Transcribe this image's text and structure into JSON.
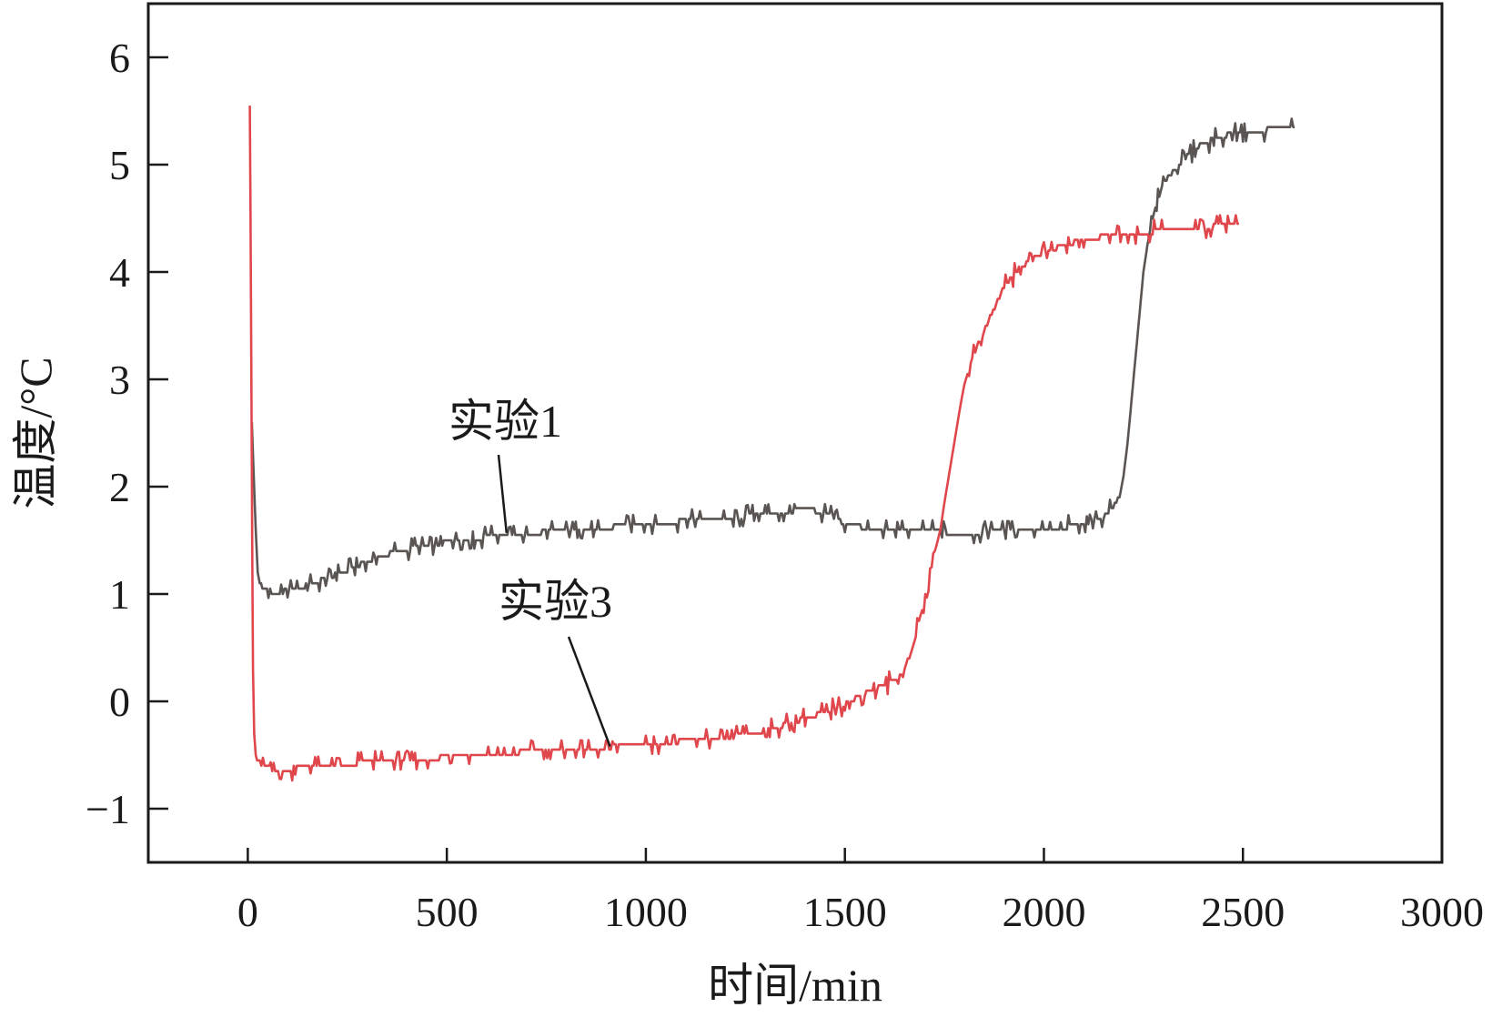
{
  "chart_data": {
    "type": "line",
    "xlabel": "时间/min",
    "ylabel": "温度/°C",
    "xlim": [
      -250,
      3000
    ],
    "ylim": [
      -1.5,
      6.5
    ],
    "xticks": [
      0,
      500,
      1000,
      1500,
      2000,
      2500,
      3000
    ],
    "yticks": [
      -1,
      0,
      1,
      2,
      3,
      4,
      5,
      6
    ],
    "xtick_labels": [
      "0",
      "500",
      "1000",
      "1500",
      "2000",
      "2500",
      "3000"
    ],
    "ytick_labels": [
      "−1",
      "0",
      "1",
      "2",
      "3",
      "4",
      "5",
      "6"
    ],
    "grid": false,
    "series": [
      {
        "name": "实验1",
        "color": "#5a5552",
        "x": [
          10,
          15,
          20,
          25,
          30,
          40,
          60,
          80,
          100,
          120,
          150,
          180,
          200,
          250,
          300,
          350,
          400,
          450,
          500,
          550,
          600,
          700,
          800,
          900,
          1000,
          1100,
          1200,
          1300,
          1350,
          1400,
          1450,
          1480,
          1500,
          1550,
          1600,
          1700,
          1800,
          1900,
          2000,
          2050,
          2100,
          2150,
          2170,
          2190,
          2200,
          2210,
          2220,
          2230,
          2240,
          2250,
          2260,
          2270,
          2280,
          2290,
          2300,
          2320,
          2340,
          2360,
          2380,
          2400,
          2450,
          2500,
          2550,
          2600,
          2630
        ],
        "y": [
          2.6,
          2.1,
          1.6,
          1.2,
          1.1,
          1.05,
          1.02,
          1.02,
          1.03,
          1.05,
          1.08,
          1.12,
          1.15,
          1.22,
          1.3,
          1.37,
          1.42,
          1.45,
          1.48,
          1.5,
          1.53,
          1.56,
          1.6,
          1.62,
          1.65,
          1.68,
          1.7,
          1.75,
          1.77,
          1.78,
          1.77,
          1.7,
          1.65,
          1.62,
          1.6,
          1.58,
          1.57,
          1.58,
          1.6,
          1.62,
          1.65,
          1.72,
          1.8,
          1.9,
          2.1,
          2.4,
          2.8,
          3.2,
          3.6,
          4.0,
          4.25,
          4.45,
          4.6,
          4.72,
          4.82,
          4.92,
          5.0,
          5.08,
          5.15,
          5.2,
          5.27,
          5.3,
          5.32,
          5.35,
          5.35
        ]
      },
      {
        "name": "实验3",
        "color": "#e0474c",
        "x": [
          5,
          7,
          9,
          11,
          13,
          16,
          20,
          30,
          50,
          80,
          100,
          150,
          200,
          250,
          300,
          400,
          500,
          600,
          700,
          800,
          900,
          1000,
          1100,
          1200,
          1300,
          1350,
          1400,
          1450,
          1500,
          1550,
          1600,
          1630,
          1650,
          1670,
          1690,
          1710,
          1730,
          1740,
          1750,
          1770,
          1790,
          1800,
          1820,
          1850,
          1880,
          1900,
          1930,
          1960,
          2000,
          2050,
          2100,
          2150,
          2200,
          2250,
          2300,
          2350,
          2400,
          2450,
          2490
        ],
        "y": [
          5.55,
          4.5,
          3.0,
          1.5,
          0.3,
          -0.3,
          -0.52,
          -0.57,
          -0.62,
          -0.65,
          -0.63,
          -0.61,
          -0.6,
          -0.58,
          -0.57,
          -0.55,
          -0.52,
          -0.5,
          -0.47,
          -0.45,
          -0.43,
          -0.4,
          -0.37,
          -0.34,
          -0.27,
          -0.22,
          -0.16,
          -0.1,
          -0.02,
          0.07,
          0.15,
          0.22,
          0.3,
          0.5,
          0.8,
          1.1,
          1.45,
          1.6,
          1.85,
          2.3,
          2.75,
          2.95,
          3.2,
          3.45,
          3.7,
          3.87,
          4.0,
          4.1,
          4.18,
          4.25,
          4.3,
          4.33,
          4.35,
          4.37,
          4.38,
          4.4,
          4.42,
          4.43,
          4.45
        ]
      }
    ],
    "annotations": [
      {
        "text": "实验1",
        "series": 0,
        "point_x": 650,
        "point_y": 1.57
      },
      {
        "text": "实验3",
        "series": 1,
        "point_x": 910,
        "point_y": -0.42
      }
    ]
  }
}
